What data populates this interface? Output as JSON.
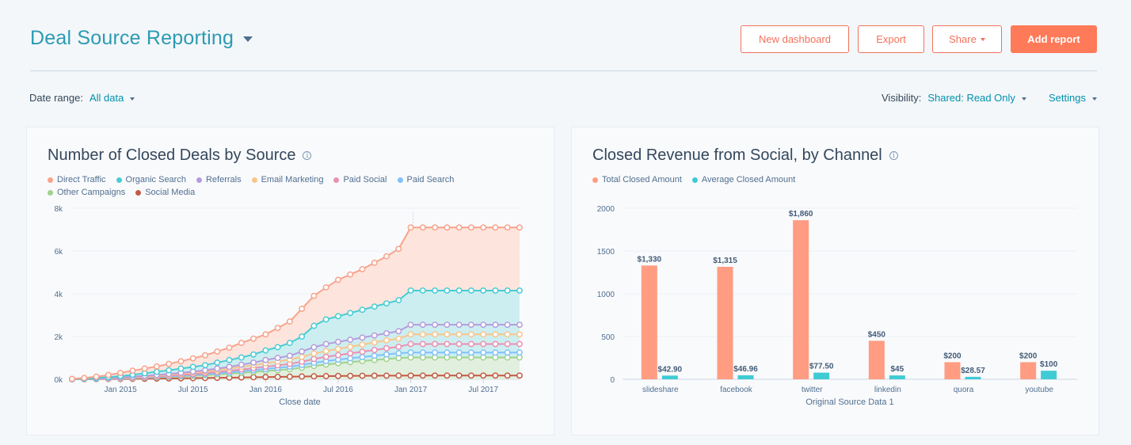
{
  "header": {
    "title": "Deal Source Reporting",
    "buttons": {
      "new_dashboard": "New dashboard",
      "export": "Export",
      "share": "Share",
      "add_report": "Add report"
    }
  },
  "filters": {
    "date_range_label": "Date range:",
    "date_range_value": "All data",
    "visibility_label": "Visibility:",
    "visibility_value": "Shared: Read Only",
    "settings": "Settings"
  },
  "colors": {
    "accent": "#ff7a59",
    "title": "#2b9bb3",
    "link": "#0091ae"
  },
  "chart_data": [
    {
      "type": "area",
      "title": "Number of Closed Deals by Source",
      "xlabel": "Close date",
      "ylabel": "",
      "ylim": [
        0,
        8000
      ],
      "y_ticks": [
        "0k",
        "2k",
        "4k",
        "6k",
        "8k"
      ],
      "x_ticks": [
        "Jan 2015",
        "Jul 2015",
        "Jan 2016",
        "Jul 2016",
        "Jan 2017",
        "Jul 2017"
      ],
      "x_start": "2014-09",
      "x": [
        "2014-09",
        "2014-10",
        "2014-11",
        "2014-12",
        "2015-01",
        "2015-02",
        "2015-03",
        "2015-04",
        "2015-05",
        "2015-06",
        "2015-07",
        "2015-08",
        "2015-09",
        "2015-10",
        "2015-11",
        "2015-12",
        "2016-01",
        "2016-02",
        "2016-03",
        "2016-04",
        "2016-05",
        "2016-06",
        "2016-07",
        "2016-08",
        "2016-09",
        "2016-10",
        "2016-11",
        "2016-12",
        "2017-01",
        "2017-02",
        "2017-03",
        "2017-04",
        "2017-05",
        "2017-06",
        "2017-07",
        "2017-08",
        "2017-09",
        "2017-10"
      ],
      "stacked": false,
      "series": [
        {
          "name": "Direct Traffic",
          "color": "#f8a38c",
          "fill": "#fde2d9",
          "values": [
            20,
            60,
            120,
            200,
            300,
            400,
            500,
            600,
            720,
            840,
            980,
            1120,
            1300,
            1480,
            1700,
            1900,
            2100,
            2400,
            2700,
            3300,
            3900,
            4300,
            4650,
            4900,
            5150,
            5450,
            5750,
            6100,
            7100,
            7100,
            7100,
            7100,
            7100,
            7100,
            7100,
            7100,
            7100,
            7100
          ]
        },
        {
          "name": "Organic Search",
          "color": "#48ccd4",
          "fill": "#c8eef2",
          "values": [
            10,
            30,
            60,
            100,
            150,
            210,
            280,
            350,
            420,
            500,
            580,
            660,
            780,
            900,
            1020,
            1160,
            1350,
            1500,
            1700,
            2000,
            2500,
            2800,
            2950,
            3100,
            3250,
            3400,
            3550,
            3700,
            4150,
            4150,
            4150,
            4150,
            4150,
            4150,
            4150,
            4150,
            4150,
            4150
          ]
        },
        {
          "name": "Referrals",
          "color": "#b59cdc",
          "fill": null,
          "values": [
            5,
            15,
            30,
            55,
            85,
            120,
            160,
            200,
            250,
            300,
            360,
            420,
            500,
            580,
            680,
            780,
            900,
            1000,
            1100,
            1300,
            1500,
            1650,
            1750,
            1850,
            1950,
            2050,
            2150,
            2250,
            2550,
            2550,
            2550,
            2550,
            2550,
            2550,
            2550,
            2550,
            2550,
            2550
          ]
        },
        {
          "name": "Email Marketing",
          "color": "#f8c58c",
          "fill": null,
          "values": [
            5,
            12,
            25,
            45,
            70,
            100,
            135,
            170,
            210,
            260,
            310,
            360,
            430,
            500,
            580,
            660,
            750,
            830,
            920,
            1050,
            1200,
            1320,
            1420,
            1520,
            1620,
            1720,
            1820,
            1900,
            2100,
            2100,
            2100,
            2100,
            2100,
            2100,
            2100,
            2100,
            2100,
            2100
          ]
        },
        {
          "name": "Paid Social",
          "color": "#ea90b1",
          "fill": null,
          "values": [
            3,
            10,
            20,
            35,
            55,
            80,
            105,
            135,
            165,
            205,
            245,
            290,
            345,
            400,
            460,
            520,
            590,
            650,
            720,
            820,
            950,
            1050,
            1130,
            1210,
            1290,
            1370,
            1450,
            1520,
            1650,
            1650,
            1650,
            1650,
            1650,
            1650,
            1650,
            1650,
            1650,
            1650
          ]
        },
        {
          "name": "Paid Search",
          "color": "#81c1fd",
          "fill": null,
          "values": [
            3,
            8,
            16,
            28,
            45,
            65,
            85,
            110,
            135,
            165,
            200,
            235,
            280,
            325,
            375,
            425,
            480,
            530,
            590,
            670,
            770,
            850,
            920,
            980,
            1040,
            1100,
            1160,
            1220,
            1250,
            1250,
            1250,
            1250,
            1250,
            1250,
            1250,
            1250,
            1250,
            1250
          ]
        },
        {
          "name": "Other Campaigns",
          "color": "#a2d28f",
          "fill": "#e3f0db",
          "values": [
            2,
            6,
            12,
            22,
            36,
            52,
            70,
            90,
            110,
            135,
            160,
            190,
            225,
            260,
            300,
            340,
            385,
            425,
            470,
            540,
            620,
            690,
            750,
            800,
            850,
            900,
            950,
            990,
            1020,
            1020,
            1020,
            1020,
            1020,
            1020,
            1020,
            1020,
            1020,
            1020
          ]
        },
        {
          "name": "Social Media",
          "color": "#c45a44",
          "fill": null,
          "values": [
            1,
            3,
            6,
            10,
            15,
            20,
            26,
            32,
            38,
            45,
            52,
            60,
            68,
            76,
            85,
            94,
            104,
            112,
            120,
            130,
            140,
            148,
            155,
            160,
            164,
            168,
            170,
            172,
            175,
            175,
            175,
            175,
            175,
            175,
            175,
            175,
            175,
            175
          ]
        }
      ]
    },
    {
      "type": "bar",
      "title": "Closed Revenue from Social, by Channel",
      "xlabel": "Original Source Data 1",
      "ylabel": "",
      "ylim": [
        0,
        2000
      ],
      "y_ticks": [
        "0",
        "500",
        "1000",
        "1500",
        "2000"
      ],
      "categories": [
        "slideshare",
        "facebook",
        "twitter",
        "linkedin",
        "quora",
        "youtube"
      ],
      "series": [
        {
          "name": "Total Closed Amount",
          "color": "#ff9c82",
          "values": [
            1330,
            1315,
            1860,
            450,
            200,
            200
          ],
          "labels": [
            "$1,330",
            "$1,315",
            "$1,860",
            "$450",
            "$200",
            "$200"
          ]
        },
        {
          "name": "Average Closed Amount",
          "color": "#3fcbd4",
          "values": [
            42.9,
            46.96,
            77.5,
            45,
            28.57,
            100
          ],
          "labels": [
            "$42.90",
            "$46.96",
            "$77.50",
            "$45",
            "$28.57",
            "$100"
          ]
        }
      ]
    }
  ]
}
